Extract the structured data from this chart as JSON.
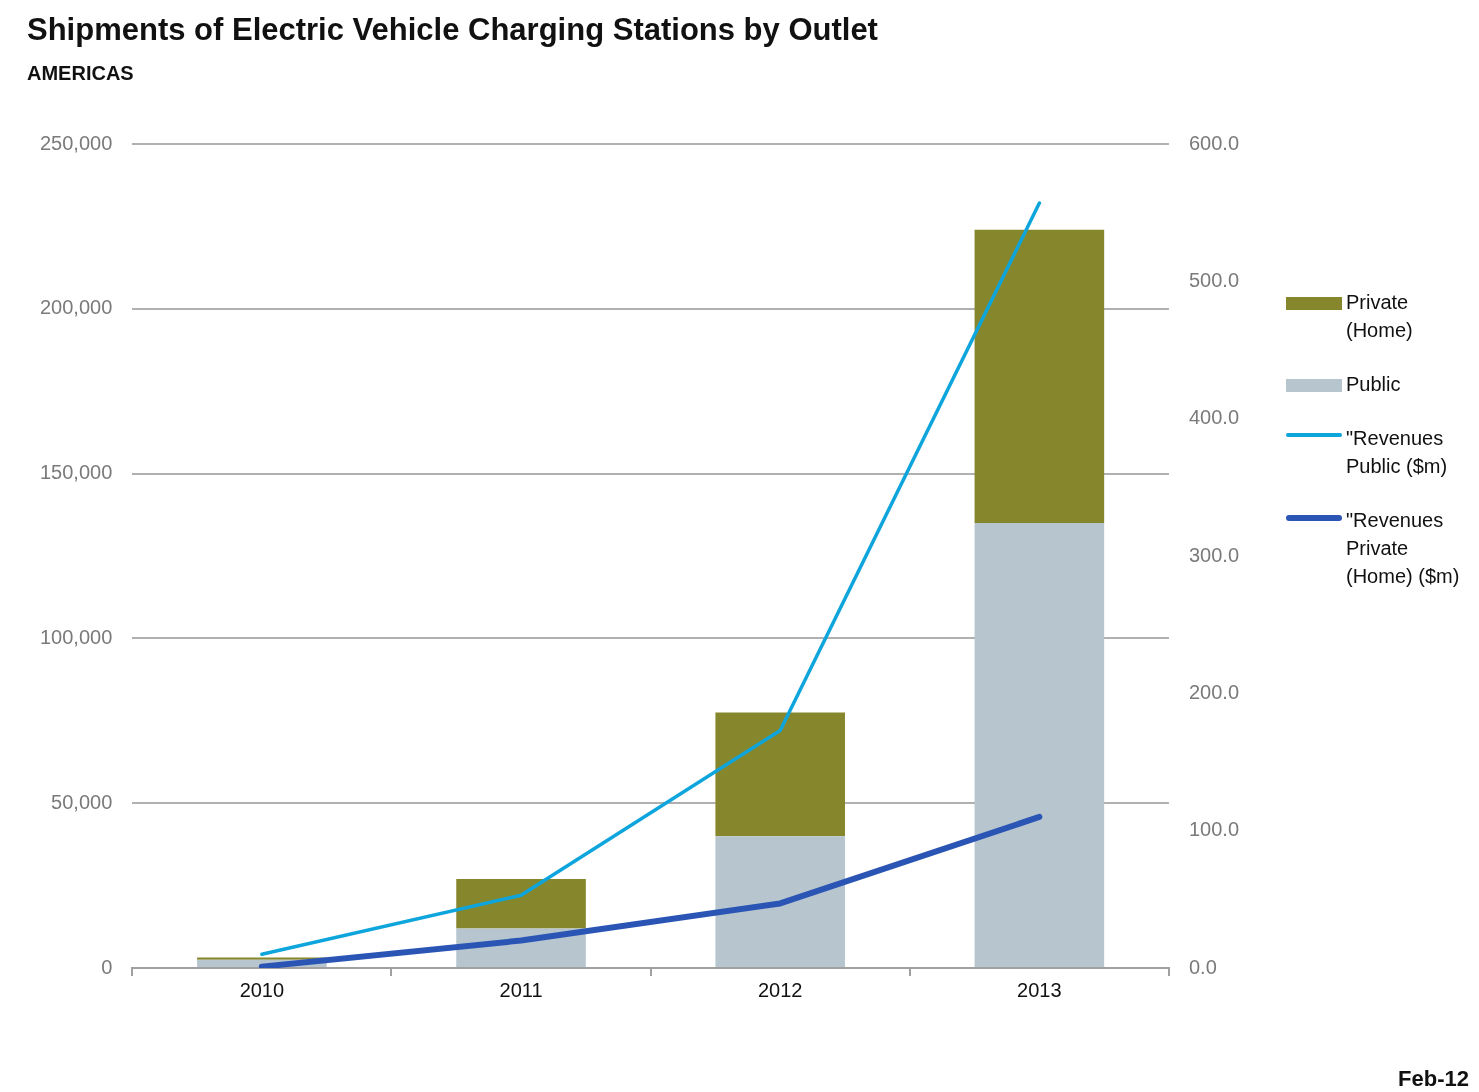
{
  "chart_data": {
    "type": "bar",
    "title": "Shipments of Electric Vehicle Charging Stations by Outlet",
    "subtitle": "AMERICAS",
    "categories": [
      "2010",
      "2011",
      "2012",
      "2013"
    ],
    "stacked": true,
    "series": [
      {
        "name": "Public",
        "color": "#b7c5ce",
        "values": [
          2500,
          12000,
          40000,
          135000
        ]
      },
      {
        "name": "Private (Home)",
        "color": "#86872d",
        "values": [
          700,
          15000,
          37500,
          89000
        ]
      },
      {
        "name": "\"Revenues Public ($m)",
        "type": "line",
        "axis": "y2",
        "color": "#0ea5dc",
        "values": [
          10,
          53,
          173,
          557
        ]
      },
      {
        "name": "\"Revenues Private (Home) ($m)",
        "type": "line",
        "axis": "y2",
        "color": "#2a55b5",
        "values": [
          1,
          20,
          47,
          110
        ]
      }
    ],
    "ylim": [
      0,
      250000
    ],
    "yticks": [
      {
        "value": 0,
        "label": "0"
      },
      {
        "value": 50000,
        "label": "50,000"
      },
      {
        "value": 100000,
        "label": "100,000"
      },
      {
        "value": 150000,
        "label": "150,000"
      },
      {
        "value": 200000,
        "label": "200,000"
      },
      {
        "value": 250000,
        "label": "250,000"
      }
    ],
    "y2lim": [
      0,
      600
    ],
    "y2ticks": [
      {
        "value": 0,
        "label": "0.0"
      },
      {
        "value": 100,
        "label": "100.0"
      },
      {
        "value": 200,
        "label": "200.0"
      },
      {
        "value": 300,
        "label": "300.0"
      },
      {
        "value": 400,
        "label": "400.0"
      },
      {
        "value": 500,
        "label": "500.0"
      },
      {
        "value": 600,
        "label": "600.0"
      }
    ],
    "grid": "y",
    "legend": "right",
    "marker": "none",
    "annotations": [
      "Feb-12"
    ]
  }
}
